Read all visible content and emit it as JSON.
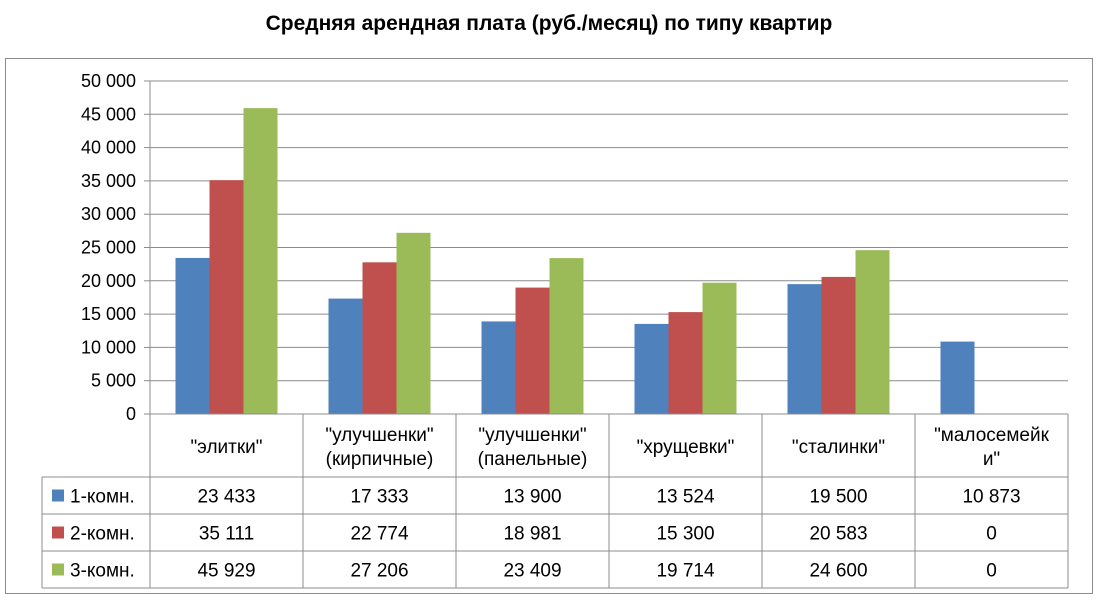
{
  "chart_data": {
    "type": "bar",
    "title": "Средняя арендная плата (руб./месяц) по типу квартир",
    "categories": [
      [
        "\"элитки\""
      ],
      [
        "\"улучшенки\"",
        "(кирпичные)"
      ],
      [
        "\"улучшенки\"",
        "(панельные)"
      ],
      [
        "\"хрущевки\""
      ],
      [
        "\"сталинки\""
      ],
      [
        "\"малосемейк",
        "и\""
      ]
    ],
    "series": [
      {
        "name": "1-комн.",
        "color": "#4f81bd",
        "values": [
          23433,
          17333,
          13900,
          13524,
          19500,
          10873
        ],
        "labels": [
          "23 433",
          "17 333",
          "13 900",
          "13 524",
          "19 500",
          "10 873"
        ]
      },
      {
        "name": "2-комн.",
        "color": "#c0504d",
        "values": [
          35111,
          22774,
          18981,
          15300,
          20583,
          0
        ],
        "labels": [
          "35 111",
          "22 774",
          "18 981",
          "15 300",
          "20 583",
          "0"
        ]
      },
      {
        "name": "3-комн.",
        "color": "#9bbb59",
        "values": [
          45929,
          27206,
          23409,
          19714,
          24600,
          0
        ],
        "labels": [
          "45 929",
          "27 206",
          "23 409",
          "19 714",
          "24 600",
          "0"
        ]
      }
    ],
    "ylim": [
      0,
      50000
    ],
    "yticks": [
      0,
      5000,
      10000,
      15000,
      20000,
      25000,
      30000,
      35000,
      40000,
      45000,
      50000
    ],
    "ytick_labels": [
      "0",
      "5 000",
      "10 000",
      "15 000",
      "20 000",
      "25 000",
      "30 000",
      "35 000",
      "40 000",
      "45 000",
      "50 000"
    ],
    "grid": true,
    "legend": "data-table"
  }
}
